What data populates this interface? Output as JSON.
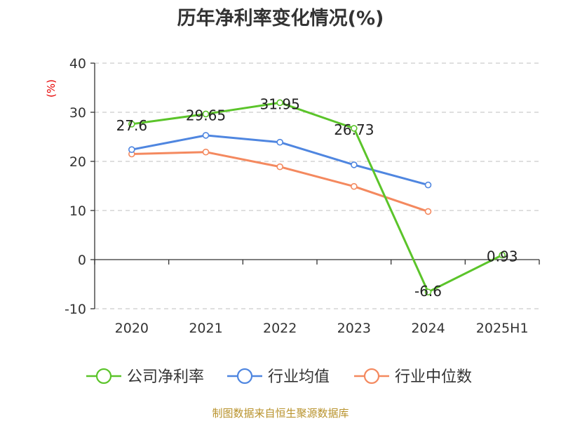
{
  "chart_data": {
    "type": "line",
    "title": "历年净利率变化情况(%)",
    "ylabel": "(%)",
    "categories": [
      "2020",
      "2021",
      "2022",
      "2023",
      "2024",
      "2025H1"
    ],
    "ylim": [
      -10,
      40
    ],
    "yticks": [
      -10,
      0,
      10,
      20,
      30,
      40
    ],
    "grid": true,
    "legend_position": "bottom",
    "series": [
      {
        "name": "公司净利率",
        "color": "#5bc42a",
        "values": [
          27.6,
          29.65,
          31.95,
          26.73,
          -6.6,
          0.93
        ],
        "data_labels": [
          "27.6",
          "29.65",
          "31.95",
          "26.73",
          "-6.6",
          "0.93"
        ]
      },
      {
        "name": "行业均值",
        "color": "#4f86e0",
        "values": [
          22.4,
          25.3,
          23.9,
          19.3,
          15.2,
          null
        ]
      },
      {
        "name": "行业中位数",
        "color": "#f4895f",
        "values": [
          21.5,
          21.9,
          18.9,
          14.9,
          9.8,
          null
        ]
      }
    ]
  },
  "footer": "制图数据来自恒生聚源数据库"
}
